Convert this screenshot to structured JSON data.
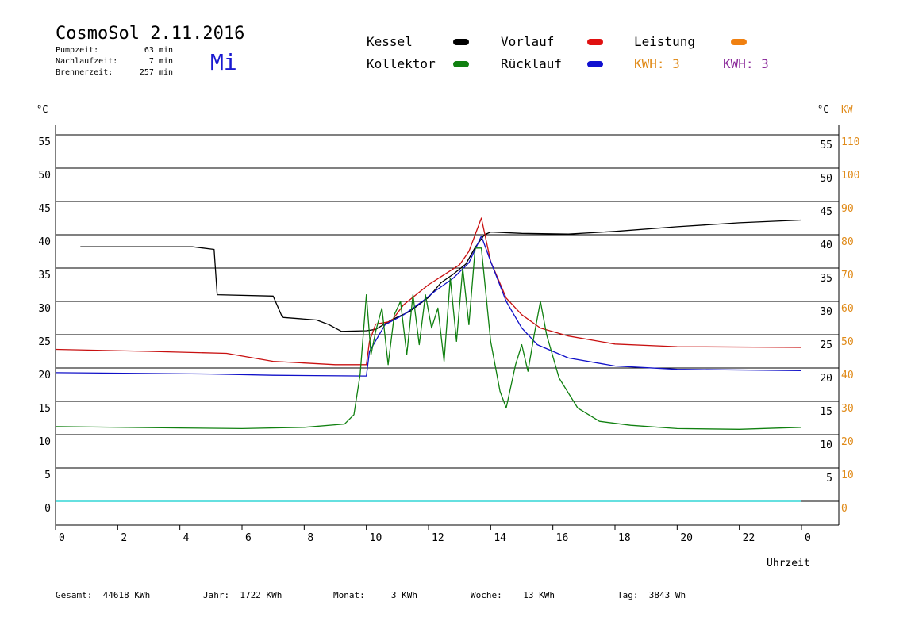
{
  "header": {
    "title": "CosmoSol 2.11.2016",
    "day": "Mi",
    "stats": [
      {
        "label": "Pumpzeit:",
        "value": "63 min"
      },
      {
        "label": "Nachlaufzeit:",
        "value": "7 min"
      },
      {
        "label": "Brennerzeit:",
        "value": "257 min"
      }
    ]
  },
  "legend": {
    "kessel": {
      "label": "Kessel",
      "color": "#000000"
    },
    "vorlauf": {
      "label": "Vorlauf",
      "color": "#e01010"
    },
    "leistung": {
      "label": "Leistung",
      "color": "#f08010"
    },
    "kollektor": {
      "label": "Kollektor",
      "color": "#108010"
    },
    "ruecklauf": {
      "label": "Rücklauf",
      "color": "#1010d0"
    },
    "kwh1": "KWH: 3",
    "kwh2": "KWH: 3"
  },
  "footer": {
    "gesamt": "Gesamt:  44618 KWh",
    "jahr": "Jahr:  1722 KWh",
    "monat": "Monat:     3 KWh",
    "woche": "Woche:    13 KWh",
    "tag": "Tag:  3843 Wh"
  },
  "chart_data": {
    "type": "line",
    "xlabel": "Uhrzeit",
    "ylabel_left": "°C",
    "ylabel_right_c": "°C",
    "ylabel_right_kw": "KW",
    "xlim": [
      0,
      24
    ],
    "ylim": [
      -4,
      60
    ],
    "x_ticks": [
      "0",
      "2",
      "4",
      "6",
      "8",
      "10",
      "12",
      "14",
      "16",
      "18",
      "20",
      "22",
      "0"
    ],
    "y_ticks": [
      0,
      5,
      10,
      15,
      20,
      25,
      30,
      35,
      40,
      45,
      50,
      55
    ],
    "y_ticks_right_kw": [
      0,
      10,
      20,
      30,
      40,
      50,
      60,
      70,
      80,
      90,
      100,
      110
    ],
    "grid": true,
    "series": [
      {
        "name": "Kessel",
        "color": "#000000",
        "points": [
          [
            0.8,
            38.2
          ],
          [
            4.4,
            38.2
          ],
          [
            5.1,
            37.8
          ],
          [
            5.2,
            31
          ],
          [
            7.0,
            30.8
          ],
          [
            7.3,
            27.6
          ],
          [
            8.4,
            27.2
          ],
          [
            8.8,
            26.5
          ],
          [
            9.2,
            25.5
          ],
          [
            10.0,
            25.6
          ],
          [
            10.3,
            25.8
          ],
          [
            10.8,
            27.2
          ],
          [
            11.4,
            28.5
          ],
          [
            12.0,
            30.6
          ],
          [
            12.4,
            32.8
          ],
          [
            12.8,
            34.1
          ],
          [
            13.2,
            35.6
          ],
          [
            13.5,
            38.1
          ],
          [
            13.8,
            40
          ],
          [
            14.0,
            40.4
          ],
          [
            15.0,
            40.2
          ],
          [
            16.5,
            40.1
          ],
          [
            18.0,
            40.5
          ],
          [
            20.0,
            41.2
          ],
          [
            22.0,
            41.8
          ],
          [
            24.0,
            42.2
          ]
        ]
      },
      {
        "name": "Vorlauf",
        "color": "#c81010",
        "points": [
          [
            0,
            22.8
          ],
          [
            3,
            22.5
          ],
          [
            5.5,
            22.2
          ],
          [
            7,
            21.0
          ],
          [
            9,
            20.5
          ],
          [
            10.0,
            20.5
          ],
          [
            10.1,
            24
          ],
          [
            10.3,
            26.6
          ],
          [
            10.8,
            27.0
          ],
          [
            11.2,
            29.5
          ],
          [
            11.6,
            31.0
          ],
          [
            12.0,
            32.5
          ],
          [
            12.5,
            34.0
          ],
          [
            13.0,
            35.5
          ],
          [
            13.3,
            37.5
          ],
          [
            13.7,
            42.5
          ],
          [
            14.0,
            36
          ],
          [
            14.5,
            30.5
          ],
          [
            15.0,
            28.0
          ],
          [
            15.6,
            26.0
          ],
          [
            16.5,
            24.8
          ],
          [
            18.0,
            23.6
          ],
          [
            20.0,
            23.2
          ],
          [
            24.0,
            23.1
          ]
        ]
      },
      {
        "name": "Rücklauf",
        "color": "#1010c8",
        "points": [
          [
            0,
            19.3
          ],
          [
            5,
            19.1
          ],
          [
            7,
            18.9
          ],
          [
            10.0,
            18.8
          ],
          [
            10.1,
            22.5
          ],
          [
            10.6,
            26.5
          ],
          [
            11.2,
            28.0
          ],
          [
            11.8,
            30.0
          ],
          [
            12.2,
            31.5
          ],
          [
            12.8,
            33.5
          ],
          [
            13.3,
            35.8
          ],
          [
            13.7,
            39.8
          ],
          [
            14.0,
            36.0
          ],
          [
            14.5,
            30.0
          ],
          [
            15.0,
            26.0
          ],
          [
            15.5,
            23.5
          ],
          [
            16.5,
            21.5
          ],
          [
            18.0,
            20.3
          ],
          [
            20.0,
            19.8
          ],
          [
            24.0,
            19.6
          ]
        ]
      },
      {
        "name": "Kollektor",
        "color": "#108010",
        "points": [
          [
            0,
            11.2
          ],
          [
            4,
            11.0
          ],
          [
            6,
            10.9
          ],
          [
            8,
            11.1
          ],
          [
            9.3,
            11.6
          ],
          [
            9.6,
            13.0
          ],
          [
            9.8,
            19.0
          ],
          [
            10.0,
            31.0
          ],
          [
            10.15,
            22.0
          ],
          [
            10.3,
            25.5
          ],
          [
            10.5,
            29.0
          ],
          [
            10.7,
            20.5
          ],
          [
            10.9,
            28.0
          ],
          [
            11.1,
            30.0
          ],
          [
            11.3,
            22.0
          ],
          [
            11.5,
            31.0
          ],
          [
            11.7,
            23.5
          ],
          [
            11.9,
            31.0
          ],
          [
            12.1,
            26.0
          ],
          [
            12.3,
            29.0
          ],
          [
            12.5,
            21.0
          ],
          [
            12.7,
            33.5
          ],
          [
            12.9,
            24.0
          ],
          [
            13.1,
            35.0
          ],
          [
            13.3,
            26.5
          ],
          [
            13.5,
            38.0
          ],
          [
            13.7,
            38.0
          ],
          [
            14.0,
            24.0
          ],
          [
            14.3,
            16.5
          ],
          [
            14.5,
            14.0
          ],
          [
            14.8,
            20.5
          ],
          [
            15.0,
            23.5
          ],
          [
            15.2,
            19.5
          ],
          [
            15.4,
            25.0
          ],
          [
            15.6,
            30.0
          ],
          [
            15.8,
            25.0
          ],
          [
            16.2,
            18.5
          ],
          [
            16.8,
            14.0
          ],
          [
            17.5,
            12.0
          ],
          [
            18.5,
            11.4
          ],
          [
            20.0,
            10.9
          ],
          [
            22.0,
            10.8
          ],
          [
            24.0,
            11.1
          ]
        ]
      }
    ]
  }
}
